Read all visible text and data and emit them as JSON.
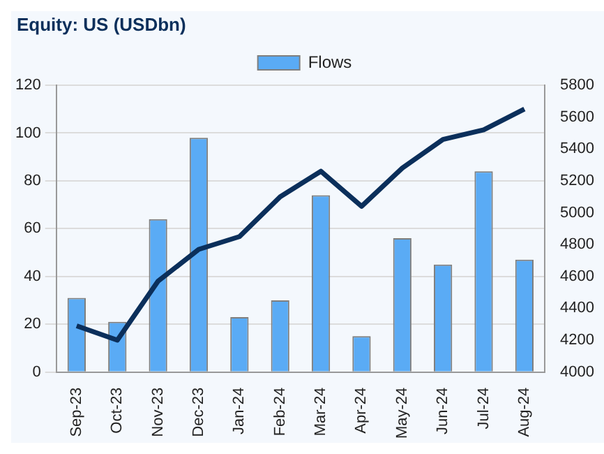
{
  "chart_data": {
    "type": "bar",
    "title": "Equity: US (USDbn)",
    "categories": [
      "Sep-23",
      "Oct-23",
      "Nov-23",
      "Dec-23",
      "Jan-24",
      "Feb-24",
      "Mar-24",
      "Apr-24",
      "May-24",
      "Jun-24",
      "Jul-24",
      "Aug-24"
    ],
    "series": [
      {
        "name": "Flows",
        "color": "#5aabf5",
        "values": [
          31,
          21,
          64,
          98,
          23,
          30,
          74,
          15,
          56,
          45,
          84,
          47
        ]
      },
      {
        "type": "line",
        "axis": "y2",
        "color": "#0b2f5b",
        "values": [
          4290,
          4200,
          4570,
          4770,
          4850,
          5100,
          5260,
          5040,
          5280,
          5460,
          5520,
          5650
        ]
      }
    ],
    "ylim": [
      0,
      120
    ],
    "yticks": [
      0,
      20,
      40,
      60,
      80,
      100,
      120
    ],
    "y2lim": [
      4000,
      5800
    ],
    "y2ticks": [
      4000,
      4200,
      4400,
      4600,
      4800,
      5000,
      5200,
      5400,
      5600,
      5800
    ],
    "grid": "y",
    "legend": "top"
  }
}
